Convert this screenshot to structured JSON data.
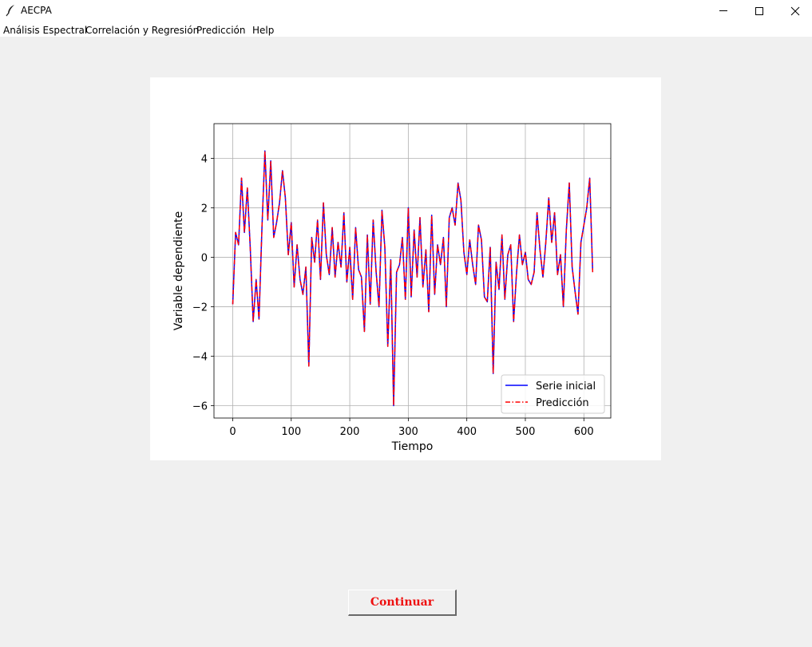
{
  "window": {
    "title": "AECPA",
    "icon": "feather-icon"
  },
  "menu": {
    "items": [
      "Análisis Espectral",
      "Correlación y Regresión",
      "Predicción",
      "Help"
    ]
  },
  "buttons": {
    "continue_label": "Continuar",
    "continue_color": "#ee1010"
  },
  "chart_data": {
    "type": "line",
    "title": "",
    "xlabel": "Tiempo",
    "ylabel": "Variable dependiente",
    "xlim": [
      -32,
      646
    ],
    "ylim": [
      -6.5,
      5.4
    ],
    "xticks": [
      0,
      100,
      200,
      300,
      400,
      500,
      600
    ],
    "yticks": [
      -6,
      -4,
      -2,
      0,
      2,
      4
    ],
    "grid": true,
    "legend_position": "bottom-right",
    "series": [
      {
        "name": "Serie inicial",
        "color": "#0000ff",
        "style": "solid"
      },
      {
        "name": "Predicción",
        "color": "#ff0000",
        "style": "dashdot"
      }
    ],
    "x": [
      0,
      5,
      10,
      15,
      20,
      25,
      30,
      35,
      40,
      45,
      50,
      55,
      60,
      65,
      70,
      75,
      80,
      85,
      90,
      95,
      100,
      105,
      110,
      115,
      120,
      125,
      130,
      135,
      140,
      145,
      150,
      155,
      160,
      165,
      170,
      175,
      180,
      185,
      190,
      195,
      200,
      205,
      210,
      215,
      220,
      225,
      230,
      235,
      240,
      245,
      250,
      255,
      260,
      265,
      270,
      275,
      280,
      285,
      290,
      295,
      300,
      305,
      310,
      315,
      320,
      325,
      330,
      335,
      340,
      345,
      350,
      355,
      360,
      365,
      370,
      375,
      380,
      385,
      390,
      395,
      400,
      405,
      410,
      415,
      420,
      425,
      430,
      435,
      440,
      445,
      450,
      455,
      460,
      465,
      470,
      475,
      480,
      485,
      490,
      495,
      500,
      505,
      510,
      515,
      520,
      525,
      530,
      535,
      540,
      545,
      550,
      555,
      560,
      565,
      570,
      575,
      580,
      585,
      590,
      595,
      600,
      605,
      610,
      615
    ],
    "values": [
      -1.9,
      1.0,
      0.5,
      3.2,
      1.0,
      2.8,
      0.4,
      -2.6,
      -0.9,
      -2.5,
      1.2,
      4.3,
      1.5,
      3.9,
      0.8,
      1.4,
      2.2,
      3.5,
      2.4,
      0.1,
      1.4,
      -1.2,
      0.5,
      -0.9,
      -1.5,
      -0.4,
      -4.4,
      0.8,
      -0.2,
      1.5,
      -0.9,
      2.2,
      0.1,
      -0.7,
      1.2,
      -0.8,
      0.6,
      -0.4,
      1.8,
      -1.0,
      0.4,
      -1.7,
      1.2,
      -0.5,
      -0.8,
      -3.0,
      0.9,
      -1.9,
      1.5,
      -0.6,
      -2.0,
      1.9,
      0.4,
      -3.6,
      -0.1,
      -6.0,
      -0.6,
      -0.3,
      0.8,
      -1.7,
      2.0,
      -1.6,
      1.1,
      -0.8,
      1.6,
      -1.2,
      0.3,
      -2.2,
      1.7,
      -1.5,
      0.5,
      -0.3,
      0.8,
      -2.0,
      1.6,
      2.0,
      1.3,
      3.0,
      2.3,
      0.2,
      -0.7,
      0.7,
      -0.3,
      -1.1,
      1.3,
      0.7,
      -1.6,
      -1.8,
      0.4,
      -4.7,
      -0.2,
      -1.3,
      0.9,
      -1.7,
      0.1,
      0.5,
      -2.6,
      -0.6,
      0.9,
      -0.3,
      0.2,
      -0.9,
      -1.1,
      -0.6,
      1.8,
      0.3,
      -0.8,
      0.6,
      2.4,
      0.6,
      1.8,
      -0.7,
      0.1,
      -2.0,
      1.1,
      3.0,
      -0.4,
      -1.4,
      -2.3,
      0.6,
      1.3,
      2.0,
      3.2,
      -0.6
    ]
  }
}
